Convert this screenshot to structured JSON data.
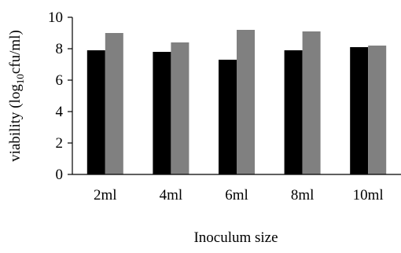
{
  "chart_data": {
    "type": "bar",
    "title": "",
    "xlabel": "Inoculum size",
    "ylabel_prefix": "viability (log",
    "ylabel_sub": "10",
    "ylabel_suffix": "cfu/ml)",
    "ylim": [
      0,
      10
    ],
    "yticks": [
      "0",
      "2",
      "4",
      "6",
      "8",
      "10"
    ],
    "grid": false,
    "legend": "none",
    "categories": [
      "2ml",
      "4ml",
      "6ml",
      "8ml",
      "10ml"
    ],
    "series": [
      {
        "color": "#000000",
        "values": [
          7.9,
          7.8,
          7.3,
          7.9,
          8.1
        ]
      },
      {
        "color": "#808080",
        "values": [
          9.0,
          8.4,
          9.2,
          9.1,
          8.2
        ]
      }
    ]
  }
}
